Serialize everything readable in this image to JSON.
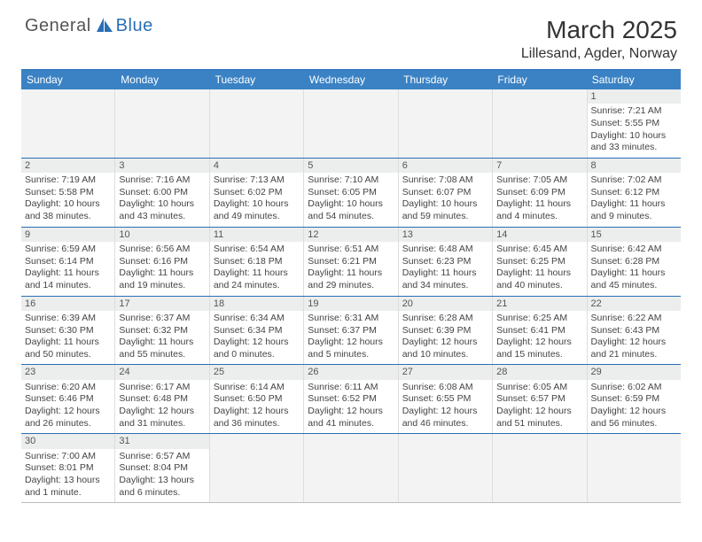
{
  "logo": {
    "text1": "General",
    "text2": "Blue"
  },
  "title": "March 2025",
  "location": "Lillesand, Agder, Norway",
  "colors": {
    "header_bar": "#3a82c4",
    "accent": "#2a6fb5",
    "grid": "#dddddd",
    "daynum_bg": "#eceded"
  },
  "weekdays": [
    "Sunday",
    "Monday",
    "Tuesday",
    "Wednesday",
    "Thursday",
    "Friday",
    "Saturday"
  ],
  "weeks": [
    [
      {
        "n": "",
        "t": ""
      },
      {
        "n": "",
        "t": ""
      },
      {
        "n": "",
        "t": ""
      },
      {
        "n": "",
        "t": ""
      },
      {
        "n": "",
        "t": ""
      },
      {
        "n": "",
        "t": ""
      },
      {
        "n": "1",
        "t": "Sunrise: 7:21 AM\nSunset: 5:55 PM\nDaylight: 10 hours and 33 minutes."
      }
    ],
    [
      {
        "n": "2",
        "t": "Sunrise: 7:19 AM\nSunset: 5:58 PM\nDaylight: 10 hours and 38 minutes."
      },
      {
        "n": "3",
        "t": "Sunrise: 7:16 AM\nSunset: 6:00 PM\nDaylight: 10 hours and 43 minutes."
      },
      {
        "n": "4",
        "t": "Sunrise: 7:13 AM\nSunset: 6:02 PM\nDaylight: 10 hours and 49 minutes."
      },
      {
        "n": "5",
        "t": "Sunrise: 7:10 AM\nSunset: 6:05 PM\nDaylight: 10 hours and 54 minutes."
      },
      {
        "n": "6",
        "t": "Sunrise: 7:08 AM\nSunset: 6:07 PM\nDaylight: 10 hours and 59 minutes."
      },
      {
        "n": "7",
        "t": "Sunrise: 7:05 AM\nSunset: 6:09 PM\nDaylight: 11 hours and 4 minutes."
      },
      {
        "n": "8",
        "t": "Sunrise: 7:02 AM\nSunset: 6:12 PM\nDaylight: 11 hours and 9 minutes."
      }
    ],
    [
      {
        "n": "9",
        "t": "Sunrise: 6:59 AM\nSunset: 6:14 PM\nDaylight: 11 hours and 14 minutes."
      },
      {
        "n": "10",
        "t": "Sunrise: 6:56 AM\nSunset: 6:16 PM\nDaylight: 11 hours and 19 minutes."
      },
      {
        "n": "11",
        "t": "Sunrise: 6:54 AM\nSunset: 6:18 PM\nDaylight: 11 hours and 24 minutes."
      },
      {
        "n": "12",
        "t": "Sunrise: 6:51 AM\nSunset: 6:21 PM\nDaylight: 11 hours and 29 minutes."
      },
      {
        "n": "13",
        "t": "Sunrise: 6:48 AM\nSunset: 6:23 PM\nDaylight: 11 hours and 34 minutes."
      },
      {
        "n": "14",
        "t": "Sunrise: 6:45 AM\nSunset: 6:25 PM\nDaylight: 11 hours and 40 minutes."
      },
      {
        "n": "15",
        "t": "Sunrise: 6:42 AM\nSunset: 6:28 PM\nDaylight: 11 hours and 45 minutes."
      }
    ],
    [
      {
        "n": "16",
        "t": "Sunrise: 6:39 AM\nSunset: 6:30 PM\nDaylight: 11 hours and 50 minutes."
      },
      {
        "n": "17",
        "t": "Sunrise: 6:37 AM\nSunset: 6:32 PM\nDaylight: 11 hours and 55 minutes."
      },
      {
        "n": "18",
        "t": "Sunrise: 6:34 AM\nSunset: 6:34 PM\nDaylight: 12 hours and 0 minutes."
      },
      {
        "n": "19",
        "t": "Sunrise: 6:31 AM\nSunset: 6:37 PM\nDaylight: 12 hours and 5 minutes."
      },
      {
        "n": "20",
        "t": "Sunrise: 6:28 AM\nSunset: 6:39 PM\nDaylight: 12 hours and 10 minutes."
      },
      {
        "n": "21",
        "t": "Sunrise: 6:25 AM\nSunset: 6:41 PM\nDaylight: 12 hours and 15 minutes."
      },
      {
        "n": "22",
        "t": "Sunrise: 6:22 AM\nSunset: 6:43 PM\nDaylight: 12 hours and 21 minutes."
      }
    ],
    [
      {
        "n": "23",
        "t": "Sunrise: 6:20 AM\nSunset: 6:46 PM\nDaylight: 12 hours and 26 minutes."
      },
      {
        "n": "24",
        "t": "Sunrise: 6:17 AM\nSunset: 6:48 PM\nDaylight: 12 hours and 31 minutes."
      },
      {
        "n": "25",
        "t": "Sunrise: 6:14 AM\nSunset: 6:50 PM\nDaylight: 12 hours and 36 minutes."
      },
      {
        "n": "26",
        "t": "Sunrise: 6:11 AM\nSunset: 6:52 PM\nDaylight: 12 hours and 41 minutes."
      },
      {
        "n": "27",
        "t": "Sunrise: 6:08 AM\nSunset: 6:55 PM\nDaylight: 12 hours and 46 minutes."
      },
      {
        "n": "28",
        "t": "Sunrise: 6:05 AM\nSunset: 6:57 PM\nDaylight: 12 hours and 51 minutes."
      },
      {
        "n": "29",
        "t": "Sunrise: 6:02 AM\nSunset: 6:59 PM\nDaylight: 12 hours and 56 minutes."
      }
    ],
    [
      {
        "n": "30",
        "t": "Sunrise: 7:00 AM\nSunset: 8:01 PM\nDaylight: 13 hours and 1 minute."
      },
      {
        "n": "31",
        "t": "Sunrise: 6:57 AM\nSunset: 8:04 PM\nDaylight: 13 hours and 6 minutes."
      },
      {
        "n": "",
        "t": ""
      },
      {
        "n": "",
        "t": ""
      },
      {
        "n": "",
        "t": ""
      },
      {
        "n": "",
        "t": ""
      },
      {
        "n": "",
        "t": ""
      }
    ]
  ]
}
